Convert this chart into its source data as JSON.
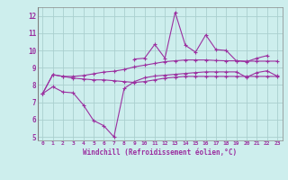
{
  "x": [
    0,
    1,
    2,
    3,
    4,
    5,
    6,
    7,
    8,
    9,
    10,
    11,
    12,
    13,
    14,
    15,
    16,
    17,
    18,
    19,
    20,
    21,
    22,
    23
  ],
  "line1": [
    7.5,
    8.6,
    8.5,
    8.4,
    8.35,
    8.3,
    8.3,
    8.25,
    8.2,
    8.15,
    8.2,
    8.3,
    8.4,
    8.45,
    8.5,
    8.5,
    8.5,
    8.5,
    8.5,
    8.5,
    8.5,
    8.5,
    8.5,
    8.5
  ],
  "line2": [
    7.5,
    8.6,
    8.5,
    8.5,
    8.55,
    8.65,
    8.75,
    8.8,
    8.9,
    9.05,
    9.15,
    9.25,
    9.35,
    9.4,
    9.45,
    9.45,
    9.45,
    9.42,
    9.4,
    9.4,
    9.38,
    9.38,
    9.38,
    9.38
  ],
  "line3": [
    null,
    null,
    null,
    null,
    null,
    null,
    null,
    null,
    null,
    9.5,
    9.55,
    10.35,
    9.55,
    12.2,
    10.3,
    9.9,
    10.9,
    10.05,
    10.0,
    9.4,
    9.35,
    9.55,
    9.7,
    null
  ],
  "line4": [
    7.5,
    7.9,
    7.6,
    7.55,
    6.85,
    5.95,
    5.65,
    5.0,
    7.8,
    8.2,
    8.42,
    8.52,
    8.57,
    8.62,
    8.67,
    8.72,
    8.76,
    8.76,
    8.76,
    8.76,
    8.45,
    8.72,
    8.82,
    8.52
  ],
  "xlim": [
    -0.5,
    23.5
  ],
  "ylim": [
    4.8,
    12.5
  ],
  "xlabel": "Windchill (Refroidissement éolien,°C)",
  "xticks": [
    0,
    1,
    2,
    3,
    4,
    5,
    6,
    7,
    8,
    9,
    10,
    11,
    12,
    13,
    14,
    15,
    16,
    17,
    18,
    19,
    20,
    21,
    22,
    23
  ],
  "yticks": [
    5,
    6,
    7,
    8,
    9,
    10,
    11,
    12
  ],
  "line_color": "#9b30a0",
  "bg_color": "#cdeeed",
  "grid_color": "#aacfcf",
  "marker": "D",
  "marker_size": 1.8,
  "linewidth": 0.8
}
